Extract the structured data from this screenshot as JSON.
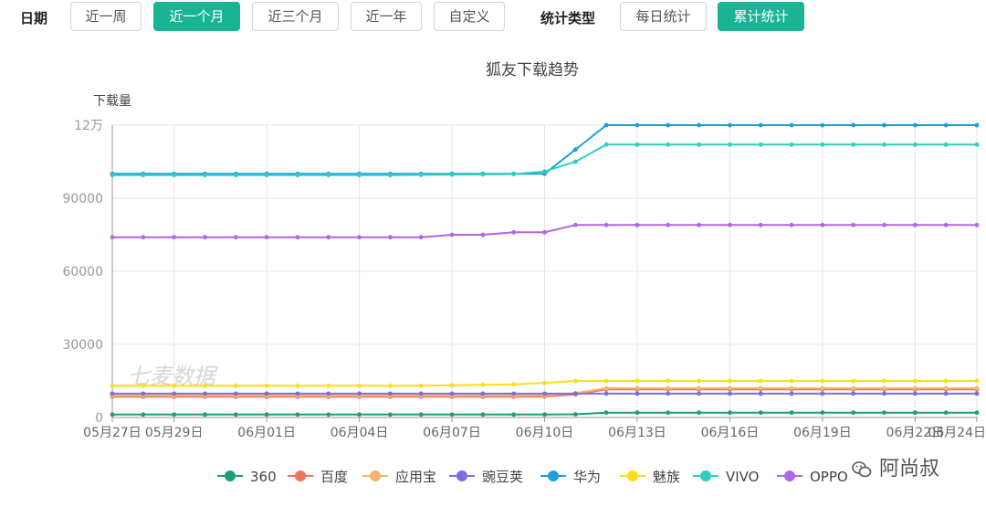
{
  "filters": {
    "date_label": "日期",
    "date_ranges": [
      "近一周",
      "近一个月",
      "近三个月",
      "近一年",
      "自定义"
    ],
    "active_date_index": 1,
    "stat_label": "统计类型",
    "stat_types": [
      "每日统计",
      "累计统计"
    ],
    "active_stat_index": 1
  },
  "chart_data": {
    "type": "line",
    "title": "狐友下载趋势",
    "ylabel": "下载量",
    "ylim": [
      0,
      120000
    ],
    "yticks": [
      0,
      30000,
      60000,
      90000,
      120000
    ],
    "ytick_labels": [
      "0",
      "30000",
      "60000",
      "90000",
      "12万"
    ],
    "x": [
      "05月27日",
      "05月28日",
      "05月29日",
      "05月30日",
      "05月31日",
      "06月01日",
      "06月02日",
      "06月03日",
      "06月04日",
      "06月05日",
      "06月06日",
      "06月07日",
      "06月08日",
      "06月09日",
      "06月10日",
      "06月11日",
      "06月12日",
      "06月13日",
      "06月14日",
      "06月15日",
      "06月16日",
      "06月17日",
      "06月18日",
      "06月19日",
      "06月20日",
      "06月21日",
      "06月22日",
      "06月23日",
      "06月24日"
    ],
    "xtick_labels": [
      {
        "i": 0,
        "text": "05月27日"
      },
      {
        "i": 2,
        "text": "05月29日"
      },
      {
        "i": 5,
        "text": "06月01日"
      },
      {
        "i": 8,
        "text": "06月04日"
      },
      {
        "i": 11,
        "text": "06月07日"
      },
      {
        "i": 14,
        "text": "06月10日"
      },
      {
        "i": 17,
        "text": "06月13日"
      },
      {
        "i": 20,
        "text": "06月16日"
      },
      {
        "i": 23,
        "text": "06月19日"
      },
      {
        "i": 26,
        "text": "06月22日"
      },
      {
        "i": 28,
        "text": "06月24日"
      }
    ],
    "grid": true,
    "legend_position": "bottom",
    "watermark": "七麦数据",
    "series": [
      {
        "name": "360",
        "color": "#1a9e77",
        "values": [
          1200,
          1200,
          1200,
          1200,
          1200,
          1200,
          1200,
          1200,
          1200,
          1200,
          1200,
          1200,
          1200,
          1200,
          1200,
          1300,
          2000,
          2000,
          2000,
          2000,
          2000,
          2000,
          2000,
          2000,
          2000,
          2000,
          2000,
          2000,
          2000
        ]
      },
      {
        "name": "百度",
        "color": "#f0725c",
        "values": [
          8500,
          8500,
          8500,
          8500,
          8500,
          8500,
          8500,
          8500,
          8500,
          8500,
          8500,
          8500,
          8500,
          8500,
          8600,
          9500,
          11500,
          11500,
          11500,
          11500,
          11500,
          11500,
          11500,
          11500,
          11500,
          11500,
          11500,
          11500,
          11500
        ]
      },
      {
        "name": "应用宝",
        "color": "#f7b36b",
        "values": [
          9000,
          9000,
          9000,
          9000,
          9000,
          9000,
          9000,
          9000,
          9000,
          9000,
          9000,
          9000,
          9000,
          9000,
          9100,
          10000,
          12000,
          12000,
          12000,
          12000,
          12000,
          12000,
          12000,
          12000,
          12000,
          12000,
          12000,
          12000,
          12000
        ]
      },
      {
        "name": "豌豆荚",
        "color": "#7b6fe0",
        "values": [
          9800,
          9800,
          9800,
          9800,
          9800,
          9800,
          9800,
          9800,
          9800,
          9800,
          9800,
          9800,
          9800,
          9800,
          9800,
          9800,
          9800,
          9800,
          9800,
          9800,
          9800,
          9800,
          9800,
          9800,
          9800,
          9800,
          9800,
          9800,
          9800
        ]
      },
      {
        "name": "华为",
        "color": "#1e9de0",
        "values": [
          100000,
          100000,
          100000,
          100000,
          100000,
          100000,
          100000,
          100000,
          100000,
          100000,
          100000,
          100000,
          100000,
          100000,
          100000,
          110000,
          120000,
          120000,
          120000,
          120000,
          120000,
          120000,
          120000,
          120000,
          120000,
          120000,
          120000,
          120000,
          120000
        ]
      },
      {
        "name": "魅族",
        "color": "#f7e01a",
        "values": [
          13000,
          13000,
          13000,
          13000,
          13000,
          13000,
          13000,
          13000,
          13000,
          13000,
          13000,
          13200,
          13400,
          13600,
          14200,
          15000,
          15000,
          15000,
          15000,
          15000,
          15000,
          15000,
          15000,
          15000,
          15000,
          15000,
          15000,
          15000,
          15000
        ]
      },
      {
        "name": "VIVO",
        "color": "#2ecfc0",
        "values": [
          99500,
          99500,
          99500,
          99500,
          99500,
          99500,
          99500,
          99500,
          99500,
          99500,
          99600,
          99700,
          99800,
          99900,
          101000,
          105000,
          112000,
          112000,
          112000,
          112000,
          112000,
          112000,
          112000,
          112000,
          112000,
          112000,
          112000,
          112000,
          112000
        ]
      },
      {
        "name": "OPPO",
        "color": "#b066e6",
        "values": [
          74000,
          74000,
          74000,
          74000,
          74000,
          74000,
          74000,
          74000,
          74000,
          74000,
          74000,
          75000,
          75000,
          76000,
          76000,
          79000,
          79000,
          79000,
          79000,
          79000,
          79000,
          79000,
          79000,
          79000,
          79000,
          79000,
          79000,
          79000,
          79000
        ]
      }
    ]
  },
  "watermark_account": "阿尚叔"
}
